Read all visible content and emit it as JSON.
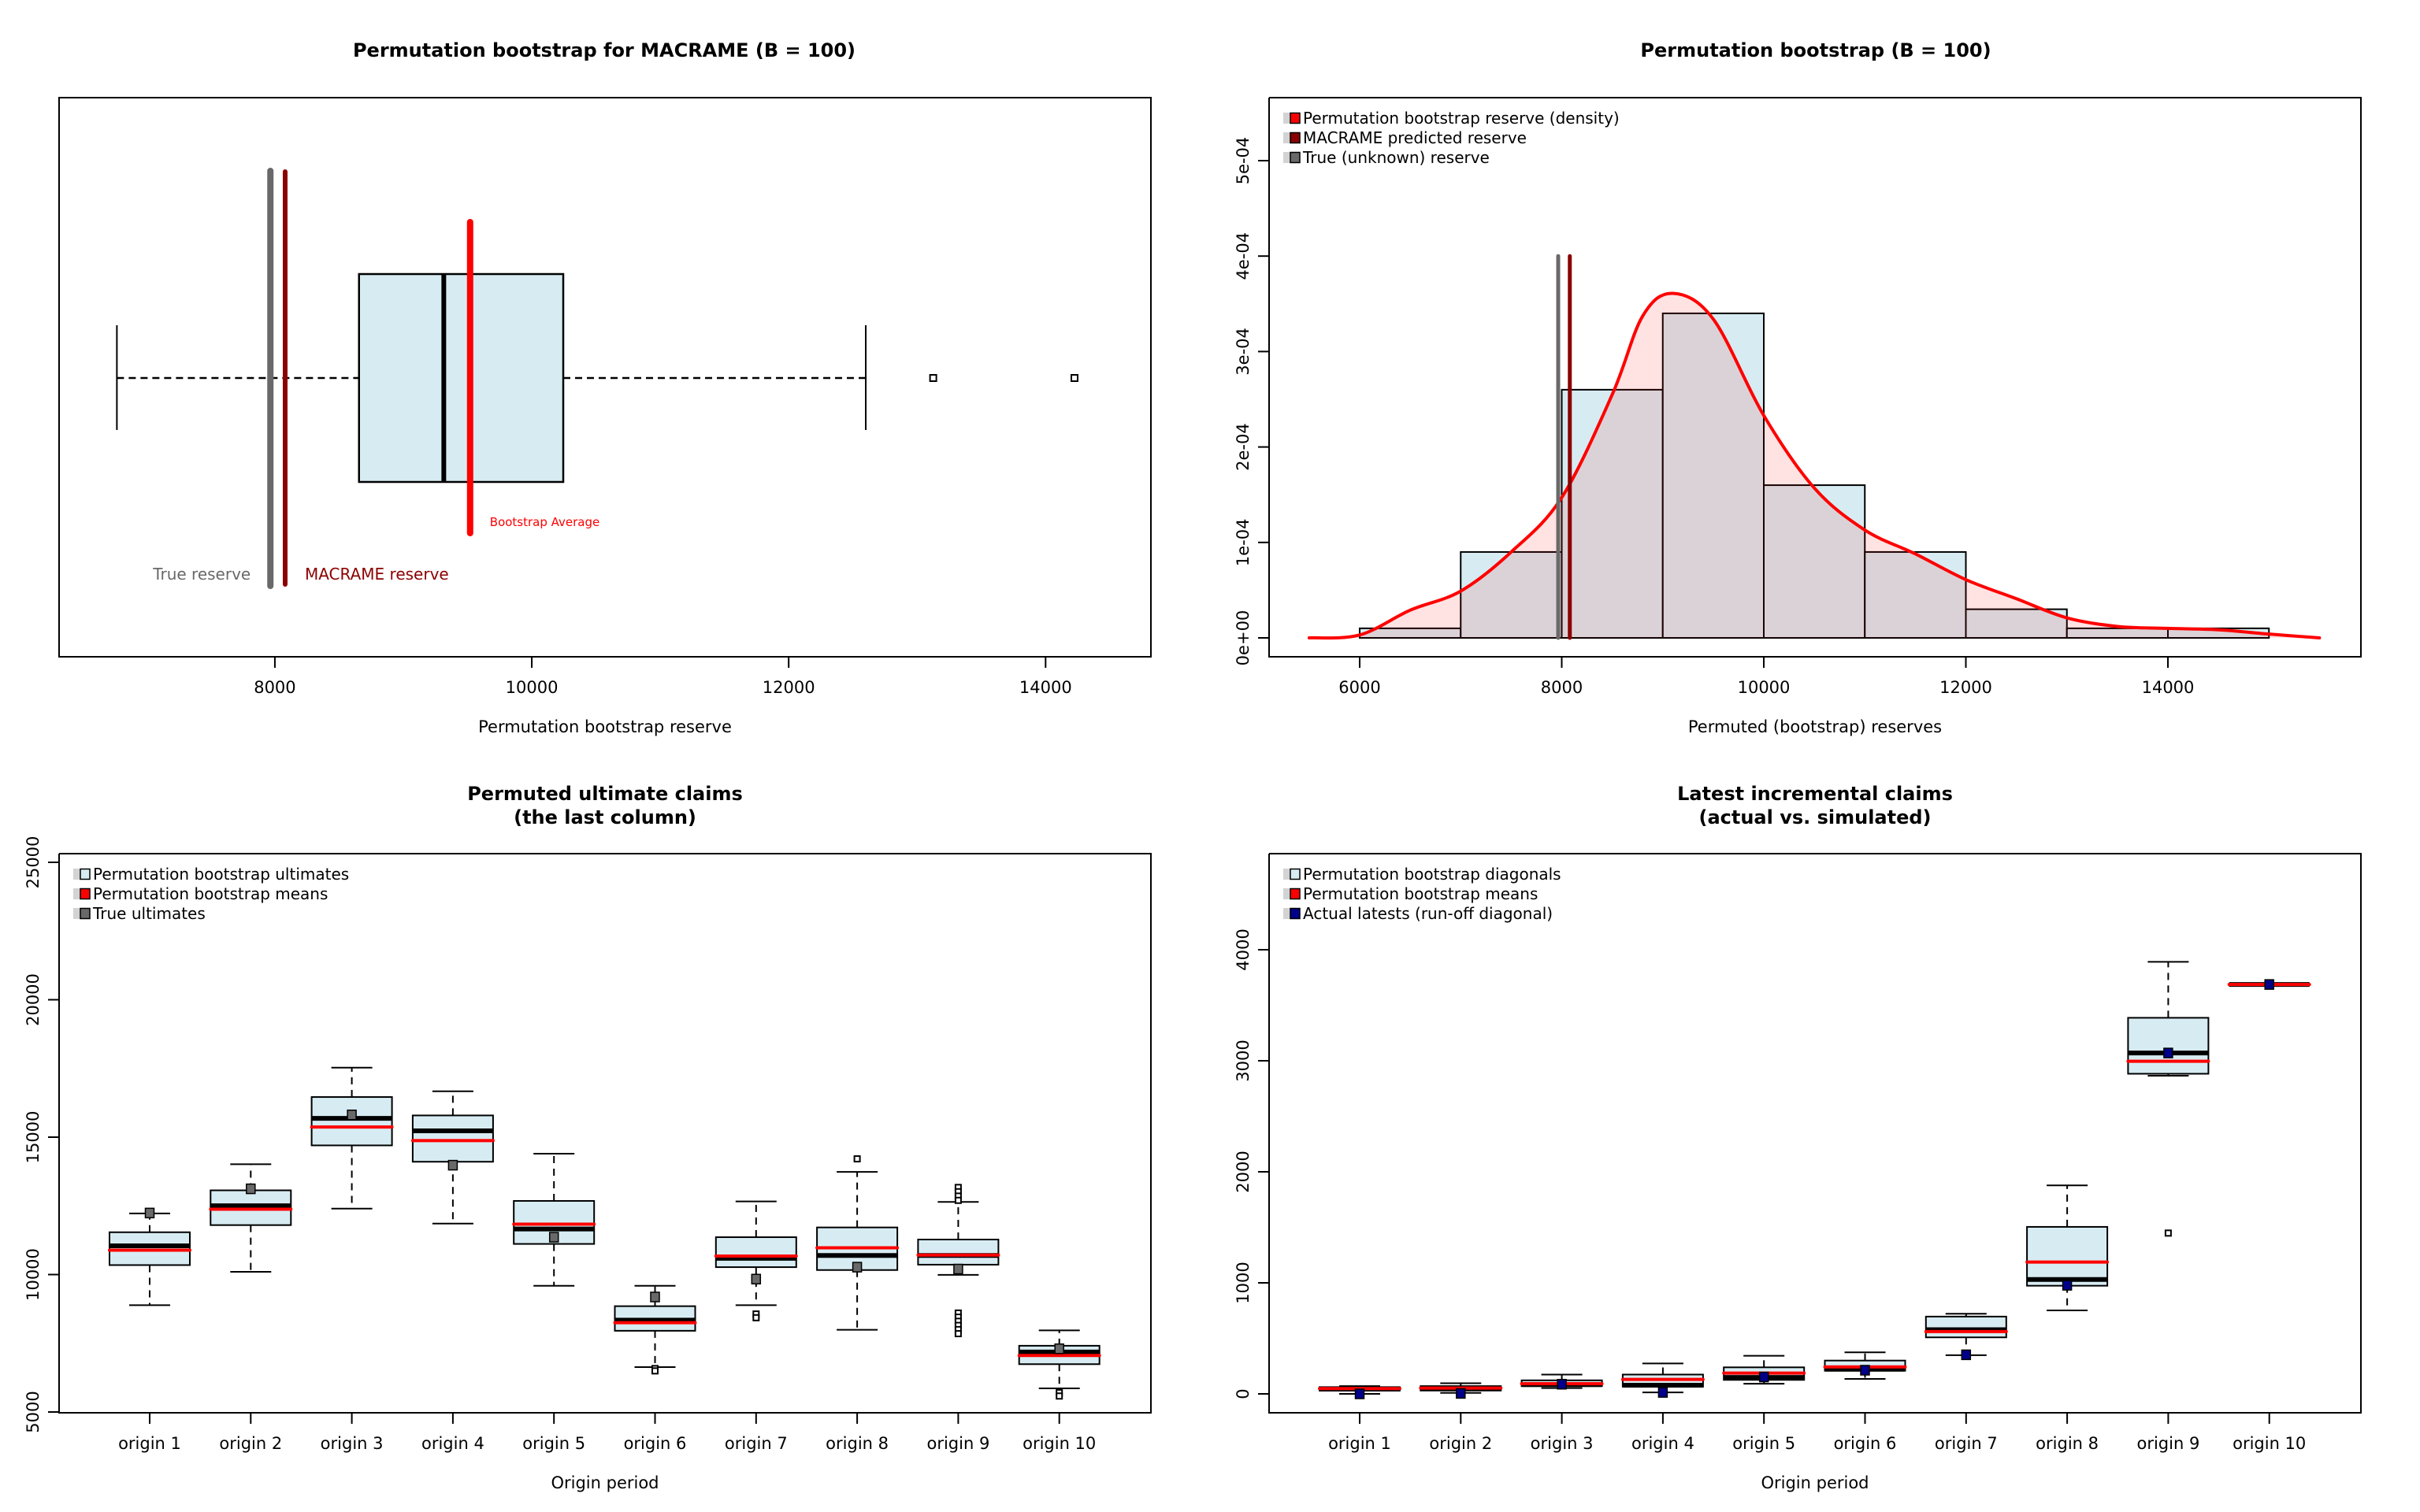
{
  "colors": {
    "box_fill": "#D7ECF2",
    "mean_red": "#FF0000",
    "macrame_darkred": "#8B0000",
    "true_grey": "#696969",
    "actual_navy": "#00008B",
    "density_fill": "rgba(255,0,0,0.11)",
    "legend_grey": "#D3D3D3"
  },
  "chart_data": [
    {
      "id": "reserve-boxplot",
      "type": "boxplot",
      "orientation": "horizontal",
      "title": "Permutation bootstrap for MACRAME (B = 100)",
      "xlabel": "Permutation bootstrap reserve",
      "ylabel": "",
      "xlim": [
        6320,
        14820
      ],
      "xticks": [
        8000,
        10000,
        12000,
        14000
      ],
      "xtick_labels": [
        "8000",
        "10000",
        "12000",
        "14000"
      ],
      "box": {
        "whisker_low": 6770,
        "q1": 8655,
        "median": 9315,
        "q3": 10245,
        "whisker_high": 12600,
        "outliers": [
          13125,
          14225
        ]
      },
      "reference_lines": [
        {
          "name": "true-reserve",
          "value": 7965,
          "label": "True reserve",
          "color": "#696969"
        },
        {
          "name": "macrame-reserve",
          "value": 8080,
          "label": "MACRAME reserve",
          "color": "#8B0000"
        },
        {
          "name": "bootstrap-average",
          "value": 9520,
          "label": "Bootstrap Average",
          "color": "#FF0000"
        }
      ]
    },
    {
      "id": "reserve-histogram",
      "type": "histogram",
      "title": "Permutation bootstrap (B = 100)",
      "xlabel": "Permuted (bootstrap) reserves",
      "ylabel": "",
      "xlim": [
        5050,
        15850
      ],
      "ylim": [
        -1.2e-05,
        0.000559
      ],
      "xticks": [
        6000,
        8000,
        10000,
        12000,
        14000
      ],
      "xtick_labels": [
        "6000",
        "8000",
        "10000",
        "12000",
        "14000"
      ],
      "yticks": [
        0,
        0.0001,
        0.0002,
        0.0003,
        0.0004,
        0.0005
      ],
      "ytick_labels": [
        "0e+00",
        "1e-04",
        "2e-04",
        "3e-04",
        "4e-04",
        "5e-04"
      ],
      "bins": [
        {
          "from": 6000,
          "to": 7000,
          "density": 1e-05
        },
        {
          "from": 7000,
          "to": 8000,
          "density": 9e-05
        },
        {
          "from": 8000,
          "to": 9000,
          "density": 0.00026
        },
        {
          "from": 9000,
          "to": 10000,
          "density": 0.00034
        },
        {
          "from": 10000,
          "to": 11000,
          "density": 0.00016
        },
        {
          "from": 11000,
          "to": 12000,
          "density": 9e-05
        },
        {
          "from": 12000,
          "to": 13000,
          "density": 3e-05
        },
        {
          "from": 13000,
          "to": 14000,
          "density": 1e-05
        },
        {
          "from": 14000,
          "to": 15000,
          "density": 1e-05
        }
      ],
      "density_curve": {
        "x": [
          5500,
          6000,
          6500,
          7000,
          7500,
          8000,
          8500,
          8800,
          9100,
          9500,
          10000,
          10500,
          11000,
          11500,
          12000,
          12500,
          13000,
          13500,
          14000,
          14500,
          15000,
          15500
        ],
        "y": [
          0,
          3e-06,
          2.9e-05,
          4.9e-05,
          9e-05,
          0.000147,
          0.000255,
          0.000337,
          0.000361,
          0.000334,
          0.000233,
          0.000157,
          0.000113,
          8.8e-05,
          6.1e-05,
          4.1e-05,
          2.1e-05,
          1.2e-05,
          1e-05,
          8.5e-06,
          4e-06,
          0
        ]
      },
      "reference_lines": [
        {
          "name": "true-reserve",
          "value": 7965,
          "top": 0.0004,
          "color": "#696969"
        },
        {
          "name": "macrame-reserve",
          "value": 8080,
          "top": 0.0004,
          "color": "#8B0000"
        }
      ],
      "legend": {
        "placement": "top-left",
        "items": [
          {
            "label": "Permutation bootstrap reserve (density)",
            "color": "#FF0000"
          },
          {
            "label": "MACRAME predicted reserve",
            "color": "#8B0000"
          },
          {
            "label": "True (unknown) reserve",
            "color": "#696969"
          }
        ]
      }
    },
    {
      "id": "ultimates-boxplot",
      "type": "boxplot",
      "orientation": "vertical",
      "title": "Permuted ultimate claims\n(the last column)",
      "title_lines": [
        "Permuted ultimate claims",
        "(the last column)"
      ],
      "xlabel": "Origin period",
      "ylabel": "",
      "ylim": [
        4620,
        25340
      ],
      "yticks": [
        5000,
        10000,
        15000,
        20000,
        25000
      ],
      "ytick_labels": [
        "5000",
        "10000",
        "15000",
        "20000",
        "25000"
      ],
      "categories": [
        "origin 1",
        "origin 2",
        "origin 3",
        "origin 4",
        "origin 5",
        "origin 6",
        "origin 7",
        "origin 8",
        "origin 9",
        "origin 10"
      ],
      "boxes": [
        {
          "whisker_low": 8885,
          "q1": 10345,
          "median": 11045,
          "q3": 11540,
          "whisker_high": 12225,
          "outliers": [],
          "mean": 10890,
          "actual": 12240
        },
        {
          "whisker_low": 10100,
          "q1": 11800,
          "median": 12505,
          "q3": 13065,
          "whisker_high": 14015,
          "outliers": [],
          "mean": 12380,
          "actual": 13120
        },
        {
          "whisker_low": 12400,
          "q1": 14700,
          "median": 15685,
          "q3": 16460,
          "whisker_high": 17530,
          "outliers": [],
          "mean": 15370,
          "actual": 15810
        },
        {
          "whisker_low": 11855,
          "q1": 14105,
          "median": 15230,
          "q3": 15790,
          "whisker_high": 16670,
          "outliers": [],
          "mean": 14875,
          "actual": 13980
        },
        {
          "whisker_low": 9590,
          "q1": 11115,
          "median": 11660,
          "q3": 12680,
          "whisker_high": 14400,
          "outliers": [],
          "mean": 11835,
          "actual": 11360
        },
        {
          "whisker_low": 6635,
          "q1": 7955,
          "median": 8340,
          "q3": 8850,
          "whisker_high": 9590,
          "outliers": [
            6580,
            6495
          ],
          "mean": 8250,
          "actual": 9185
        },
        {
          "whisker_low": 8885,
          "q1": 10270,
          "median": 10590,
          "q3": 11360,
          "whisker_high": 12660,
          "outliers": [
            8565,
            8430
          ],
          "mean": 10675,
          "actual": 9835
        },
        {
          "whisker_low": 7990,
          "q1": 10165,
          "median": 10695,
          "q3": 11715,
          "whisker_high": 13735,
          "outliers": [
            14210
          ],
          "mean": 10975,
          "actual": 10270
        },
        {
          "whisker_low": 9990,
          "q1": 10360,
          "median": 10695,
          "q3": 11275,
          "whisker_high": 12645,
          "outliers": [
            13170,
            13015,
            12855,
            12700,
            8600,
            8450,
            8300,
            8150,
            8000,
            7850
          ],
          "mean": 10710,
          "actual": 10200
        },
        {
          "whisker_low": 5860,
          "q1": 6740,
          "median": 7180,
          "q3": 7410,
          "whisker_high": 7970,
          "outliers": [
            5705,
            5580
          ],
          "mean": 7055,
          "actual": 7300
        }
      ],
      "legend": {
        "placement": "top-left",
        "items": [
          {
            "label": "Permutation bootstrap ultimates",
            "color": "#D7ECF2"
          },
          {
            "label": "Permutation bootstrap means",
            "color": "#FF0000"
          },
          {
            "label": "True ultimates",
            "color": "#696969"
          }
        ]
      }
    },
    {
      "id": "latest-incremental-boxplot",
      "type": "boxplot",
      "orientation": "vertical",
      "title": "Latest incremental claims\n(actual vs. simulated)",
      "title_lines": [
        "Latest incremental claims",
        "(actual vs. simulated)"
      ],
      "xlabel": "Origin period",
      "ylabel": "",
      "ylim": [
        -180,
        4850
      ],
      "yticks": [
        0,
        1000,
        2000,
        3000,
        4000
      ],
      "ytick_labels": [
        "0",
        "1000",
        "2000",
        "3000",
        "4000"
      ],
      "categories": [
        "origin 1",
        "origin 2",
        "origin 3",
        "origin 4",
        "origin 5",
        "origin 6",
        "origin 7",
        "origin 8",
        "origin 9",
        "origin 10"
      ],
      "boxes": [
        {
          "whisker_low": 0,
          "q1": 30,
          "median": 43,
          "q3": 61,
          "whisker_high": 70,
          "outliers": [],
          "mean": 48,
          "actual": 0
        },
        {
          "whisker_low": 9,
          "q1": 30,
          "median": 48,
          "q3": 70,
          "whisker_high": 96,
          "outliers": [],
          "mean": 52,
          "actual": 4
        },
        {
          "whisker_low": 52,
          "q1": 70,
          "median": 83,
          "q3": 122,
          "whisker_high": 174,
          "outliers": [],
          "mean": 91,
          "actual": 87
        },
        {
          "whisker_low": 13,
          "q1": 65,
          "median": 78,
          "q3": 174,
          "whisker_high": 274,
          "outliers": [],
          "mean": 130,
          "actual": 13
        },
        {
          "whisker_low": 91,
          "q1": 126,
          "median": 148,
          "q3": 239,
          "whisker_high": 343,
          "outliers": [],
          "mean": 187,
          "actual": 152
        },
        {
          "whisker_low": 135,
          "q1": 209,
          "median": 222,
          "q3": 300,
          "whisker_high": 374,
          "outliers": [],
          "mean": 243,
          "actual": 213
        },
        {
          "whisker_low": 348,
          "q1": 509,
          "median": 578,
          "q3": 696,
          "whisker_high": 722,
          "outliers": [],
          "mean": 561,
          "actual": 352
        },
        {
          "whisker_low": 752,
          "q1": 974,
          "median": 1030,
          "q3": 1504,
          "whisker_high": 1878,
          "outliers": [],
          "mean": 1187,
          "actual": 978
        },
        {
          "whisker_low": 2865,
          "q1": 2883,
          "median": 3070,
          "q3": 3387,
          "whisker_high": 3891,
          "outliers": [
            1448
          ],
          "mean": 2996,
          "actual": 3070
        },
        {
          "whisker_low": 3687,
          "q1": 3687,
          "median": 3687,
          "q3": 3687,
          "whisker_high": 3687,
          "outliers": [],
          "mean": 3687,
          "actual": 3687
        }
      ],
      "legend": {
        "placement": "top-left",
        "items": [
          {
            "label": "Permutation bootstrap diagonals",
            "color": "#D7ECF2"
          },
          {
            "label": "Permutation bootstrap means",
            "color": "#FF0000"
          },
          {
            "label": "Actual latests (run-off diagonal)",
            "color": "#00008B"
          }
        ]
      }
    }
  ]
}
